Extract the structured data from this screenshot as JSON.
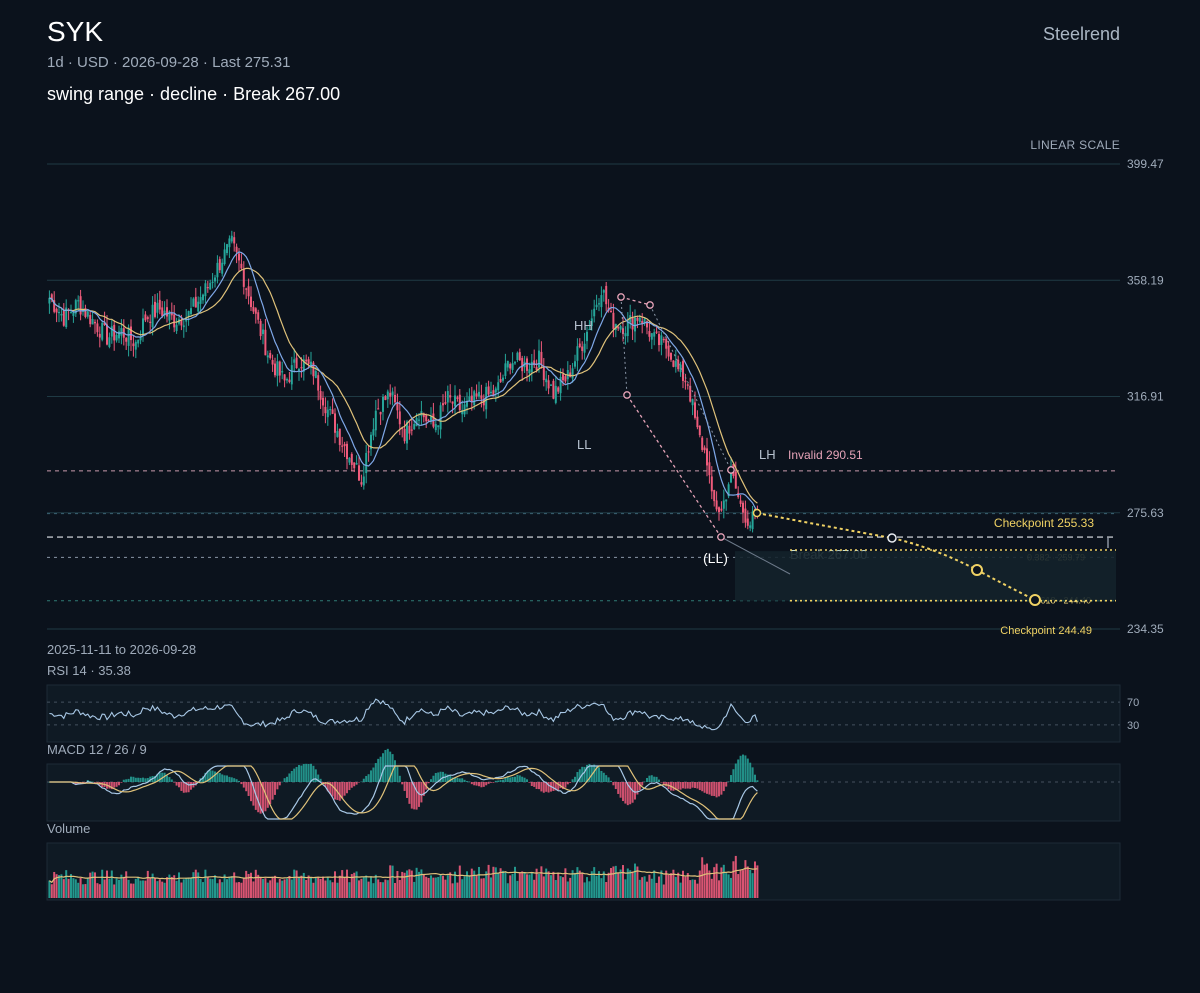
{
  "header": {
    "ticker": "SYK",
    "subline": "1d · USD · 2026-09-28 · Last 275.31",
    "caption": "swing range · decline · Break 267.00",
    "brand": "Steelrend",
    "scale_label": "LINEAR SCALE",
    "date_range": "2025-11-11 to 2026-09-28"
  },
  "colors": {
    "background": "#0b121c",
    "up": "#26a69a",
    "down": "#ef5b7b",
    "ma_fast": "#7fa8e8",
    "ma_slow": "#e0c27a",
    "invalid": "#e6a3b8",
    "checkpoint": "#f0d264",
    "break": "#c7e0d6"
  },
  "chart_data": {
    "type": "candlestick",
    "interval": "1d",
    "x_start": "2025-11-11",
    "x_end": "2026-09-28",
    "ylim": [
      234.35,
      399.47
    ],
    "y_ticks": [
      "399.47",
      "358.19",
      "316.91",
      "275.63",
      "234.35"
    ],
    "last": 275.31,
    "levels": {
      "invalid": {
        "label": "Invalid 290.51",
        "value": 290.51
      },
      "break": {
        "label": "Break 267.00",
        "value": 267.0
      },
      "fib_0382": {
        "label": "0.382 · 259.79",
        "value": 259.79
      },
      "fib_0618": {
        "label": "0.618 · 244.40",
        "value": 244.4
      }
    },
    "checkpoints": [
      {
        "label": "Checkpoint 255.33",
        "value": 255.33
      },
      {
        "label": "Checkpoint 244.49",
        "value": 244.49
      }
    ],
    "swing_labels": [
      "HH",
      "LL",
      "LH",
      "(LL)"
    ],
    "close_anchors": [
      [
        0,
        352
      ],
      [
        6,
        345
      ],
      [
        12,
        350
      ],
      [
        18,
        344
      ],
      [
        24,
        338
      ],
      [
        30,
        340
      ],
      [
        36,
        336
      ],
      [
        40,
        345
      ],
      [
        46,
        348
      ],
      [
        52,
        344
      ],
      [
        58,
        346
      ],
      [
        66,
        356
      ],
      [
        72,
        366
      ],
      [
        76,
        371
      ],
      [
        80,
        362
      ],
      [
        86,
        345
      ],
      [
        92,
        330
      ],
      [
        98,
        322
      ],
      [
        104,
        330
      ],
      [
        110,
        326
      ],
      [
        116,
        312
      ],
      [
        122,
        301
      ],
      [
        130,
        288
      ],
      [
        136,
        312
      ],
      [
        142,
        318
      ],
      [
        148,
        304
      ],
      [
        154,
        312
      ],
      [
        160,
        306
      ],
      [
        166,
        316
      ],
      [
        172,
        312
      ],
      [
        178,
        316
      ],
      [
        186,
        318
      ],
      [
        192,
        330
      ],
      [
        198,
        328
      ],
      [
        204,
        330
      ],
      [
        210,
        318
      ],
      [
        216,
        324
      ],
      [
        224,
        340
      ],
      [
        230,
        356
      ],
      [
        234,
        344
      ],
      [
        240,
        342
      ],
      [
        246,
        346
      ],
      [
        252,
        337
      ],
      [
        258,
        334
      ],
      [
        262,
        326
      ],
      [
        266,
        322
      ],
      [
        270,
        304
      ],
      [
        274,
        295
      ],
      [
        276,
        280
      ],
      [
        280,
        276
      ],
      [
        284,
        290
      ],
      [
        288,
        278
      ],
      [
        292,
        272
      ],
      [
        295,
        275.31
      ]
    ],
    "indicators": {
      "rsi": {
        "title": "RSI 14 · 35.38",
        "period": 14,
        "last": 35.38,
        "levels": [
          "70",
          "30"
        ]
      },
      "macd": {
        "title": "MACD 12 / 26 / 9",
        "fast": 12,
        "slow": 26,
        "signal": 9
      },
      "volume": {
        "title": "Volume"
      }
    }
  }
}
